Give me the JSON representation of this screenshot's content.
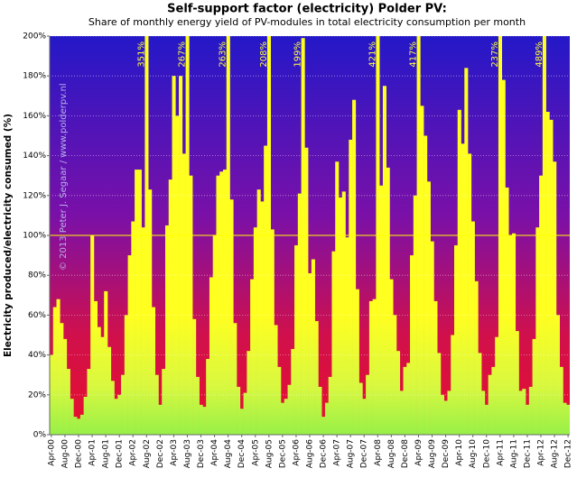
{
  "chart_data": {
    "type": "bar",
    "title": "Self-support factor (electricity) Polder PV:",
    "subtitle": "Share of monthly energy yield of PV-modules in total electricity consumption per month",
    "y_label": "Electricity produced/electricity consumed (%)",
    "watermark": "© 2013 Peter J. Segaar / www.polderpv.nl",
    "categories": [
      "Apr-00",
      null,
      null,
      null,
      "Aug-00",
      null,
      null,
      null,
      "Dec-00",
      null,
      null,
      null,
      "Apr-01",
      null,
      null,
      null,
      "Aug-01",
      null,
      null,
      null,
      "Dec-01",
      null,
      null,
      null,
      "Apr-02",
      null,
      null,
      null,
      "Aug-02",
      null,
      null,
      null,
      "Dec-02",
      null,
      null,
      null,
      "Apr-03",
      null,
      null,
      null,
      "Aug-03",
      null,
      null,
      null,
      "Dec-03",
      null,
      null,
      null,
      "Apr-04",
      null,
      null,
      null,
      "Aug-04",
      null,
      null,
      null,
      "Dec-04",
      null,
      null,
      null,
      "Apr-05",
      null,
      null,
      null,
      "Aug-05",
      null,
      null,
      null,
      "Dec-05",
      null,
      null,
      null,
      "Apr-06",
      null,
      null,
      null,
      "Aug-06",
      null,
      null,
      null,
      "Dec-06",
      null,
      null,
      null,
      "Apr-07",
      null,
      null,
      null,
      "Aug-07",
      null,
      null,
      null,
      "Dec-07",
      null,
      null,
      null,
      "Apr-08",
      null,
      null,
      null,
      "Aug-08",
      null,
      null,
      null,
      "Dec-08",
      null,
      null,
      null,
      "Apr-09",
      null,
      null,
      null,
      "Aug-09",
      null,
      null,
      null,
      "Dec-09",
      null,
      null,
      null,
      "Apr-10",
      null,
      null,
      null,
      "Aug-10",
      null,
      null,
      null,
      "Dec-10",
      null,
      null,
      null,
      "Apr-11",
      null,
      null,
      null,
      "Aug-11",
      null,
      null,
      null,
      "Dec-11",
      null,
      null,
      null,
      "Apr-12",
      null,
      null,
      null,
      "Aug-12",
      null,
      null,
      null,
      "Dec-12"
    ],
    "values": [
      40,
      64,
      68,
      56,
      48,
      33,
      18,
      9,
      8,
      10,
      19,
      33,
      100,
      67,
      54,
      49,
      72,
      44,
      27,
      18,
      20,
      30,
      60,
      90,
      107,
      133,
      133,
      104,
      351,
      123,
      64,
      30,
      15,
      33,
      105,
      128,
      180,
      160,
      180,
      141,
      267,
      130,
      58,
      29,
      15,
      14,
      38,
      79,
      100,
      130,
      132,
      133,
      263,
      118,
      56,
      24,
      13,
      21,
      42,
      78,
      104,
      123,
      117,
      145,
      208,
      103,
      55,
      34,
      16,
      18,
      25,
      43,
      95,
      121,
      199,
      144,
      81,
      88,
      57,
      24,
      9,
      16,
      29,
      92,
      137,
      119,
      122,
      99,
      148,
      168,
      73,
      26,
      18,
      30,
      67,
      68,
      421,
      125,
      175,
      134,
      78,
      60,
      42,
      22,
      34,
      36,
      90,
      120,
      417,
      165,
      150,
      127,
      97,
      67,
      41,
      20,
      17,
      22,
      50,
      95,
      163,
      146,
      184,
      141,
      107,
      77,
      41,
      22,
      15,
      30,
      34,
      49,
      237,
      178,
      124,
      100,
      101,
      52,
      22,
      23,
      15,
      24,
      48,
      104,
      130,
      489,
      162,
      158,
      137,
      60,
      34,
      16,
      15
    ],
    "value_labels": [
      null,
      null,
      null,
      null,
      null,
      null,
      null,
      null,
      null,
      null,
      null,
      null,
      null,
      null,
      null,
      null,
      null,
      null,
      null,
      null,
      null,
      null,
      null,
      null,
      null,
      null,
      null,
      null,
      "351%",
      null,
      null,
      null,
      null,
      null,
      null,
      null,
      null,
      null,
      null,
      null,
      "267%",
      null,
      null,
      null,
      null,
      null,
      null,
      null,
      null,
      null,
      null,
      null,
      "263%",
      null,
      null,
      null,
      null,
      null,
      null,
      null,
      null,
      null,
      null,
      null,
      "208%",
      null,
      null,
      null,
      null,
      null,
      null,
      null,
      null,
      null,
      "199%",
      null,
      null,
      null,
      null,
      null,
      null,
      null,
      null,
      null,
      null,
      null,
      null,
      null,
      null,
      null,
      null,
      null,
      null,
      null,
      null,
      null,
      "421%",
      null,
      null,
      null,
      null,
      null,
      null,
      null,
      null,
      null,
      null,
      null,
      "417%",
      null,
      null,
      null,
      null,
      null,
      null,
      null,
      null,
      null,
      null,
      null,
      null,
      null,
      null,
      null,
      null,
      null,
      null,
      null,
      null,
      null,
      null,
      null,
      "237%",
      null,
      null,
      null,
      null,
      null,
      null,
      null,
      null,
      null,
      null,
      null,
      null,
      "489%",
      null,
      null,
      null,
      null,
      null,
      null,
      null
    ],
    "ylim": [
      0,
      200
    ],
    "yticks": [
      {
        "value": 0,
        "label": "0%"
      },
      {
        "value": 20,
        "label": "20%"
      },
      {
        "value": 40,
        "label": "40%"
      },
      {
        "value": 60,
        "label": "60%"
      },
      {
        "value": 80,
        "label": "80%"
      },
      {
        "value": 100,
        "label": "100%"
      },
      {
        "value": 120,
        "label": "120%"
      },
      {
        "value": 140,
        "label": "140%"
      },
      {
        "value": 160,
        "label": "160%"
      },
      {
        "value": 180,
        "label": "180%"
      },
      {
        "value": 200,
        "label": "200%"
      }
    ],
    "reference_line": 100,
    "grid": true
  }
}
